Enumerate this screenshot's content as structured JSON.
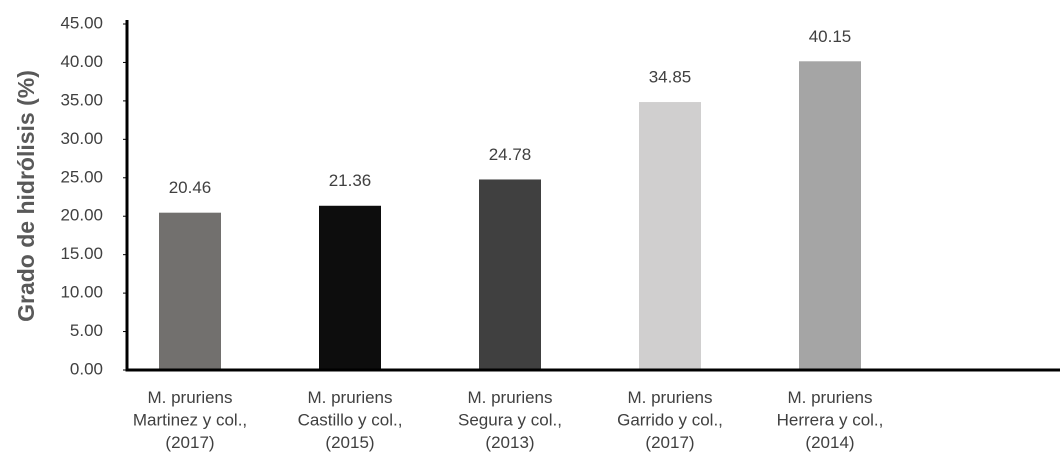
{
  "chart_data": {
    "type": "bar",
    "y_label": "Grado de hidrólisis  (%)",
    "categories": [
      [
        "M. pruriens",
        "Martinez y col.,",
        "(2017)"
      ],
      [
        "M. pruriens",
        "Castillo y col.,",
        "(2015)"
      ],
      [
        "M. pruriens",
        "Segura y col.,",
        "(2013)"
      ],
      [
        "M. pruriens",
        "Garrido y col.,",
        "(2017)"
      ],
      [
        "M. pruriens",
        "Herrera y col.,",
        "(2014)"
      ]
    ],
    "values": [
      20.46,
      21.36,
      24.78,
      34.85,
      40.15
    ],
    "colors": [
      "#72706e",
      "#0d0d0d",
      "#404040",
      "#d0cfcf",
      "#a5a5a5"
    ],
    "ylim": [
      0,
      45
    ],
    "yticks": [
      {
        "value": 0,
        "label": "0.00"
      },
      {
        "value": 5,
        "label": "5.00"
      },
      {
        "value": 10,
        "label": "10.00"
      },
      {
        "value": 15,
        "label": "15.00"
      },
      {
        "value": 20,
        "label": "20.00"
      },
      {
        "value": 25,
        "label": "25.00"
      },
      {
        "value": 30,
        "label": "30.00"
      },
      {
        "value": 35,
        "label": "35.00"
      },
      {
        "value": 40,
        "label": "40.00"
      },
      {
        "value": 45,
        "label": "45.00"
      }
    ],
    "grid": false
  }
}
